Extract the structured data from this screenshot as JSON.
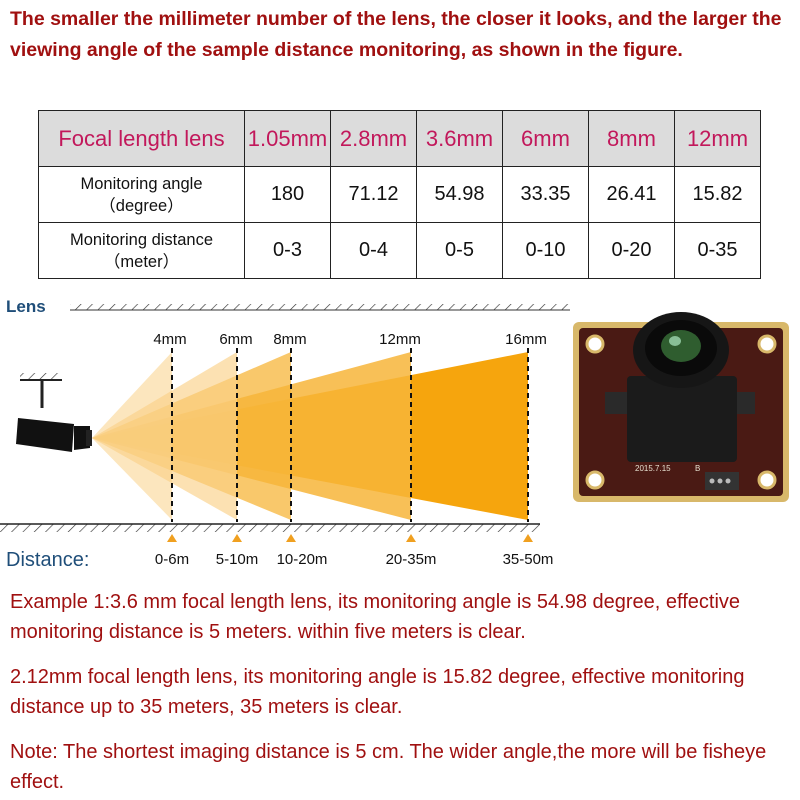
{
  "intro": "The smaller the millimeter number of the lens, the closer it looks, and the larger the viewing angle of the sample distance monitoring, as shown in the figure.",
  "table": {
    "header_label": "Focal length lens",
    "lenses": [
      "1.05mm",
      "2.8mm",
      "3.6mm",
      "6mm",
      "8mm",
      "12mm"
    ],
    "rows": [
      {
        "label_line1": "Monitoring angle",
        "label_line2": "（degree）",
        "values": [
          "180",
          "71.12",
          "54.98",
          "33.35",
          "26.41",
          "15.82"
        ]
      },
      {
        "label_line1": "Monitoring distance",
        "label_line2": "（meter）",
        "values": [
          "0-3",
          "0-4",
          "0-5",
          "0-10",
          "0-20",
          "0-35"
        ]
      }
    ]
  },
  "diagram": {
    "lens_label": "Lens",
    "distance_label": "Distance:",
    "focal_marks": [
      "4mm",
      "6mm",
      "8mm",
      "12mm",
      "16mm"
    ],
    "distance_marks": [
      "0-6m",
      "5-10m",
      "10-20m",
      "20-35m",
      "35-50m"
    ],
    "colors": {
      "beam_dark": "#f5a000",
      "beam_light": "#fde3b0",
      "label_blue": "#1f4e79",
      "marker": "#f0a020"
    },
    "board_date": "2015.7.15",
    "board_mark": "B"
  },
  "example1": "Example 1:3.6 mm focal length lens, its monitoring angle is 54.98 degree, effective monitoring distance is 5 meters. within five meters is clear.",
  "example2": "2.12mm focal length lens, its monitoring angle is 15.82 degree, effective monitoring distance up to 35 meters, 35 meters is clear.",
  "note": "Note: The shortest imaging distance is 5 cm. The wider angle,the more will be fisheye effect."
}
